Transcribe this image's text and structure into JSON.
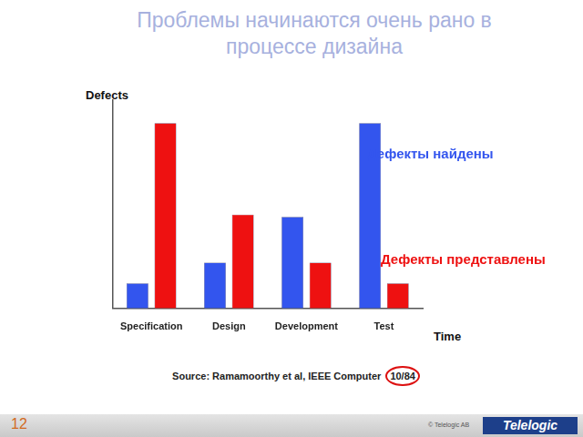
{
  "chart_data": {
    "type": "bar",
    "title": "Проблемы начинаются очень рано в процессе дизайна",
    "y_label": "Defects",
    "x_label": "Time",
    "categories": [
      "Specification",
      "Design",
      "Development",
      "Test"
    ],
    "series": [
      {
        "name": "Дефекты найдены",
        "color": "#3355ee",
        "values": [
          12,
          22,
          44,
          89
        ]
      },
      {
        "name": "Дефекты представлены",
        "color": "#ee1111",
        "values": [
          89,
          45,
          22,
          12
        ]
      }
    ],
    "ylim": [
      0,
      100
    ],
    "tick_labels": "x",
    "grid": false,
    "annotations": [
      "Source: Ramamoorthy et al, IEEE Computer 10/84"
    ]
  },
  "footer": {
    "page": "12",
    "copyright": "© Telelogic AB",
    "logo": "Telelogic"
  }
}
